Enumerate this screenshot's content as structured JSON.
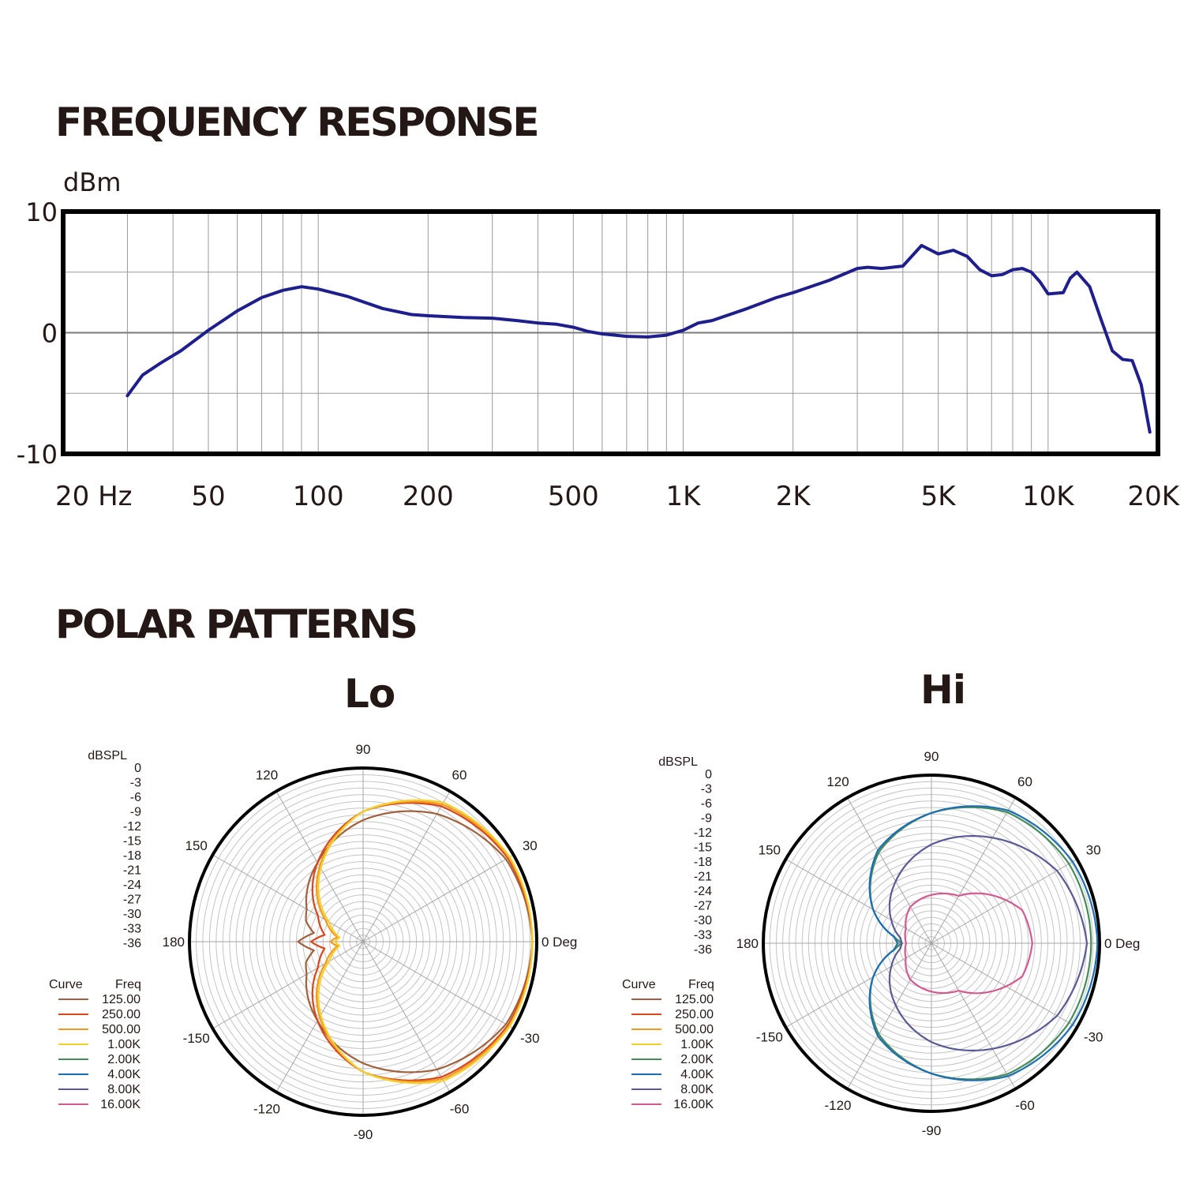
{
  "page": {
    "frequency_title": "FREQUENCY RESPONSE",
    "polar_title": "POLAR PATTERNS"
  },
  "chart_data": [
    {
      "type": "line",
      "title": "FREQUENCY RESPONSE",
      "xlabel": "",
      "ylabel": "dBm",
      "x_scale": "log",
      "xlim": [
        20,
        20000
      ],
      "ylim": [
        -10,
        10
      ],
      "x_ticks": [
        {
          "value": 20,
          "label": "20 Hz"
        },
        {
          "value": 50,
          "label": "50"
        },
        {
          "value": 100,
          "label": "100"
        },
        {
          "value": 200,
          "label": "200"
        },
        {
          "value": 500,
          "label": "500"
        },
        {
          "value": 1000,
          "label": "1K"
        },
        {
          "value": 2000,
          "label": "2K"
        },
        {
          "value": 5000,
          "label": "5K"
        },
        {
          "value": 10000,
          "label": "10K"
        },
        {
          "value": 20000,
          "label": "20K"
        }
      ],
      "y_ticks": [
        {
          "value": 10,
          "label": "10"
        },
        {
          "value": 0,
          "label": "0"
        },
        {
          "value": -10,
          "label": "-10"
        }
      ],
      "grid": true,
      "color": "#1e1e8c",
      "series": [
        {
          "x": [
            30,
            33,
            37,
            42,
            50,
            60,
            70,
            80,
            90,
            100,
            120,
            150,
            180,
            200,
            250,
            300,
            350,
            400,
            450,
            500,
            550,
            600,
            700,
            800,
            900,
            1000,
            1100,
            1200,
            1500,
            1800,
            2000,
            2500,
            3000,
            3200,
            3500,
            4000,
            4200,
            4500,
            5000,
            5500,
            6000,
            6500,
            7000,
            7500,
            8000,
            8500,
            9000,
            9500,
            10000,
            11000,
            11500,
            12000,
            13000,
            14000,
            15000,
            16000,
            17000,
            18000,
            19000
          ],
          "y": [
            -5.2,
            -3.5,
            -2.5,
            -1.5,
            0.2,
            1.8,
            2.9,
            3.5,
            3.8,
            3.6,
            3.0,
            2.0,
            1.5,
            1.4,
            1.25,
            1.2,
            1.0,
            0.8,
            0.7,
            0.45,
            0.1,
            -0.1,
            -0.3,
            -0.35,
            -0.2,
            0.2,
            0.8,
            1.0,
            2.0,
            2.9,
            3.3,
            4.3,
            5.3,
            5.4,
            5.3,
            5.5,
            6.2,
            7.2,
            6.5,
            6.8,
            6.3,
            5.2,
            4.7,
            4.8,
            5.2,
            5.3,
            5.0,
            4.2,
            3.2,
            3.3,
            4.5,
            5.0,
            3.8,
            1.0,
            -1.5,
            -2.2,
            -2.3,
            -4.3,
            -8.2
          ]
        }
      ]
    },
    {
      "type": "polar",
      "title": "Lo",
      "r_label": "dBSPL",
      "r_ticks": [
        "0",
        "-3",
        "-6",
        "-9",
        "-12",
        "-15",
        "-18",
        "-21",
        "-24",
        "-27",
        "-30",
        "-33",
        "-36"
      ],
      "angle_labels": [
        {
          "deg": 0,
          "label": "0 Deg"
        },
        {
          "deg": 30,
          "label": "30"
        },
        {
          "deg": 60,
          "label": "60"
        },
        {
          "deg": 90,
          "label": "90"
        },
        {
          "deg": 120,
          "label": "120"
        },
        {
          "deg": 150,
          "label": "150"
        },
        {
          "deg": 180,
          "label": "180"
        },
        {
          "deg": -150,
          "label": "-150"
        },
        {
          "deg": -120,
          "label": "-120"
        },
        {
          "deg": -90,
          "label": "-90"
        },
        {
          "deg": -60,
          "label": "-60"
        },
        {
          "deg": -30,
          "label": "-30"
        }
      ],
      "legend": {
        "curve_header": "Curve",
        "freq_header": "Freq",
        "entries": [
          {
            "freq": "125.00",
            "color": "#a0613c"
          },
          {
            "freq": "250.00",
            "color": "#d8461e"
          },
          {
            "freq": "500.00",
            "color": "#f29a1e"
          },
          {
            "freq": "1.00K",
            "color": "#f5cf2c"
          },
          {
            "freq": "2.00K",
            "color": "#468c5a"
          },
          {
            "freq": "4.00K",
            "color": "#1e6eb4"
          },
          {
            "freq": "8.00K",
            "color": "#5a5a96"
          },
          {
            "freq": "16.00K",
            "color": "#d25a91"
          }
        ]
      },
      "series": [
        {
          "name": "125.00",
          "color": "#a0613c",
          "points": [
            [
              0,
              -1.0
            ],
            [
              30,
              -2.0
            ],
            [
              60,
              -6.0
            ],
            [
              90,
              -12.0
            ],
            [
              120,
              -19.0
            ],
            [
              150,
              -25.0
            ],
            [
              160,
              -26.0
            ],
            [
              170,
              -28.5
            ],
            [
              180,
              -25.0
            ]
          ]
        },
        {
          "name": "250.00",
          "color": "#d8461e",
          "points": [
            [
              0,
              -1.0
            ],
            [
              30,
              -1.5
            ],
            [
              60,
              -4.0
            ],
            [
              90,
              -10.0
            ],
            [
              120,
              -19.0
            ],
            [
              150,
              -28.0
            ],
            [
              170,
              -31.0
            ],
            [
              180,
              -28.0
            ]
          ]
        },
        {
          "name": "500.00",
          "color": "#f29a1e",
          "points": [
            [
              0,
              -1.0
            ],
            [
              30,
              -1.2
            ],
            [
              60,
              -3.5
            ],
            [
              90,
              -10.0
            ],
            [
              120,
              -20.0
            ],
            [
              150,
              -30.0
            ],
            [
              170,
              -34.0
            ],
            [
              180,
              -32.5
            ]
          ]
        },
        {
          "name": "1.00K",
          "color": "#f5cf2c",
          "points": [
            [
              0,
              -1.0
            ],
            [
              30,
              -1.0
            ],
            [
              60,
              -3.0
            ],
            [
              90,
              -10.0
            ],
            [
              120,
              -20.5
            ],
            [
              150,
              -31.0
            ],
            [
              170,
              -34.5
            ],
            [
              180,
              -33.5
            ]
          ]
        }
      ]
    },
    {
      "type": "polar",
      "title": "Hi",
      "r_label": "dBSPL",
      "r_ticks": [
        "0",
        "-3",
        "-6",
        "-9",
        "-12",
        "-15",
        "-18",
        "-21",
        "-24",
        "-27",
        "-30",
        "-33",
        "-36"
      ],
      "angle_labels": [
        {
          "deg": 0,
          "label": "0 Deg"
        },
        {
          "deg": 30,
          "label": "30"
        },
        {
          "deg": 60,
          "label": "60"
        },
        {
          "deg": 90,
          "label": "90"
        },
        {
          "deg": 120,
          "label": "120"
        },
        {
          "deg": 150,
          "label": "150"
        },
        {
          "deg": 180,
          "label": "180"
        },
        {
          "deg": -150,
          "label": "-150"
        },
        {
          "deg": -120,
          "label": "-120"
        },
        {
          "deg": -90,
          "label": "-90"
        },
        {
          "deg": -60,
          "label": "-60"
        },
        {
          "deg": -30,
          "label": "-30"
        }
      ],
      "legend": {
        "curve_header": "Curve",
        "freq_header": "Freq",
        "entries": [
          {
            "freq": "125.00",
            "color": "#a0613c"
          },
          {
            "freq": "250.00",
            "color": "#d8461e"
          },
          {
            "freq": "500.00",
            "color": "#f29a1e"
          },
          {
            "freq": "1.00K",
            "color": "#f5cf2c"
          },
          {
            "freq": "2.00K",
            "color": "#468c5a"
          },
          {
            "freq": "4.00K",
            "color": "#1e6eb4"
          },
          {
            "freq": "8.00K",
            "color": "#5a5a96"
          },
          {
            "freq": "16.00K",
            "color": "#d25a91"
          }
        ]
      },
      "series": [
        {
          "name": "2.00K",
          "color": "#468c5a",
          "points": [
            [
              0,
              -2.0
            ],
            [
              30,
              -2.2
            ],
            [
              60,
              -4.0
            ],
            [
              90,
              -9.0
            ],
            [
              120,
              -15.0
            ],
            [
              150,
              -24.0
            ],
            [
              170,
              -31.0
            ],
            [
              180,
              -33.0
            ]
          ]
        },
        {
          "name": "4.00K",
          "color": "#1e6eb4",
          "points": [
            [
              0,
              -0.5
            ],
            [
              30,
              -1.2
            ],
            [
              60,
              -3.5
            ],
            [
              90,
              -9.0
            ],
            [
              120,
              -14.5
            ],
            [
              150,
              -24.0
            ],
            [
              170,
              -31.0
            ],
            [
              180,
              -32.0
            ]
          ]
        },
        {
          "name": "8.00K",
          "color": "#5a5a96",
          "points": [
            [
              0,
              -3.0
            ],
            [
              30,
              -5.5
            ],
            [
              60,
              -11.0
            ],
            [
              90,
              -16.5
            ],
            [
              120,
              -23.0
            ],
            [
              150,
              -29.0
            ],
            [
              170,
              -32.5
            ],
            [
              180,
              -33.0
            ]
          ]
        },
        {
          "name": "16.00K",
          "color": "#d25a91",
          "points": [
            [
              0,
              -16.0
            ],
            [
              20,
              -17.0
            ],
            [
              40,
              -22.0
            ],
            [
              60,
              -27.0
            ],
            [
              90,
              -28.5
            ],
            [
              120,
              -30.0
            ],
            [
              150,
              -33.0
            ],
            [
              180,
              -34.0
            ]
          ]
        }
      ]
    }
  ]
}
